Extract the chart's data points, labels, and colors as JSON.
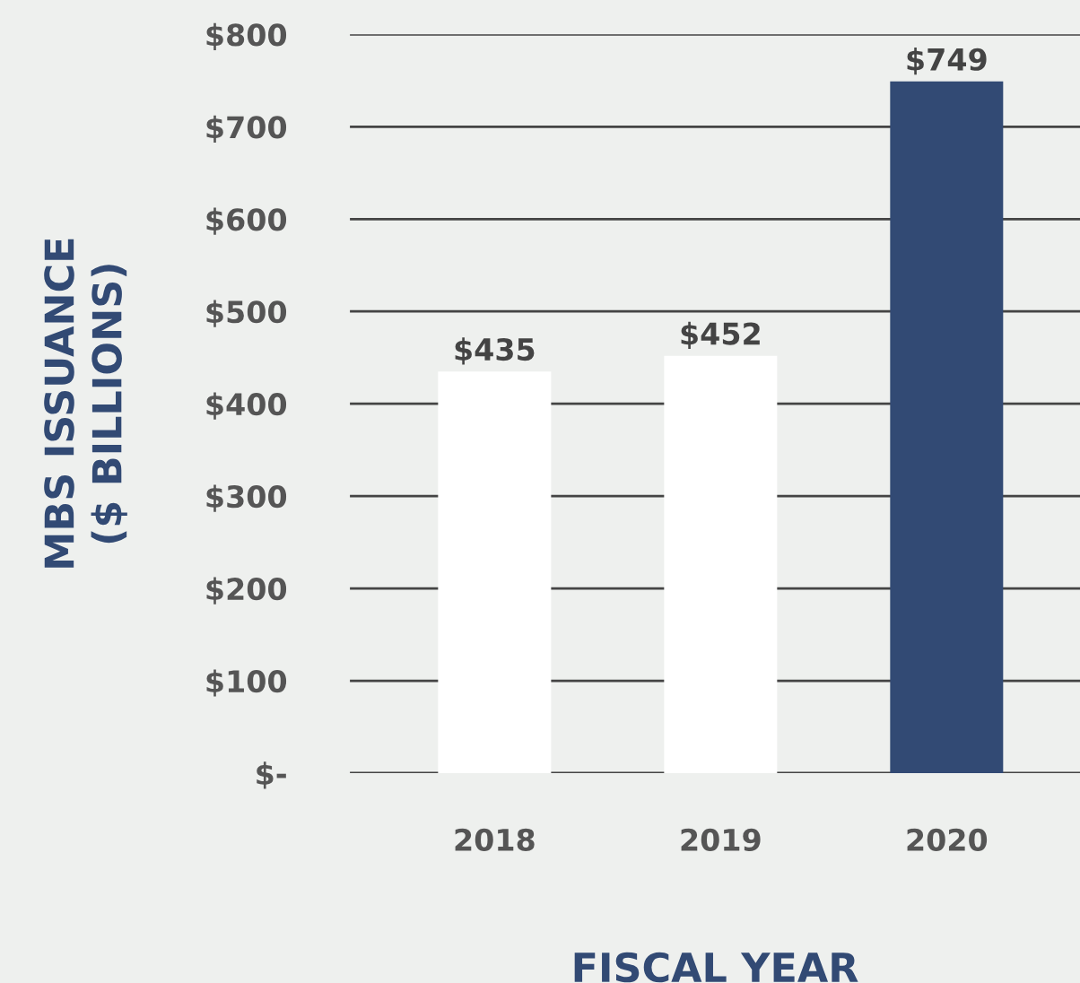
{
  "chart_data": {
    "type": "bar",
    "categories": [
      "2018",
      "2019",
      "2020"
    ],
    "values": [
      435,
      452,
      749
    ],
    "colors": [
      "#ffffff",
      "#ffffff",
      "#324a74"
    ],
    "value_labels": [
      "$435",
      "$452",
      "$749"
    ],
    "xlabel": "FISCAL YEAR",
    "ylabel": "MBS ISSUANCE\n($ BILLIONS)",
    "ylim": [
      0,
      800
    ],
    "yticks": [
      {
        "value": 0,
        "label": "$-"
      },
      {
        "value": 100,
        "label": "$100"
      },
      {
        "value": 200,
        "label": "$200"
      },
      {
        "value": 300,
        "label": "$300"
      },
      {
        "value": 400,
        "label": "$400"
      },
      {
        "value": 500,
        "label": "$500"
      },
      {
        "value": 600,
        "label": "$600"
      },
      {
        "value": 700,
        "label": "$700"
      },
      {
        "value": 800,
        "label": "$800"
      }
    ],
    "grid": "y",
    "legend": false
  }
}
